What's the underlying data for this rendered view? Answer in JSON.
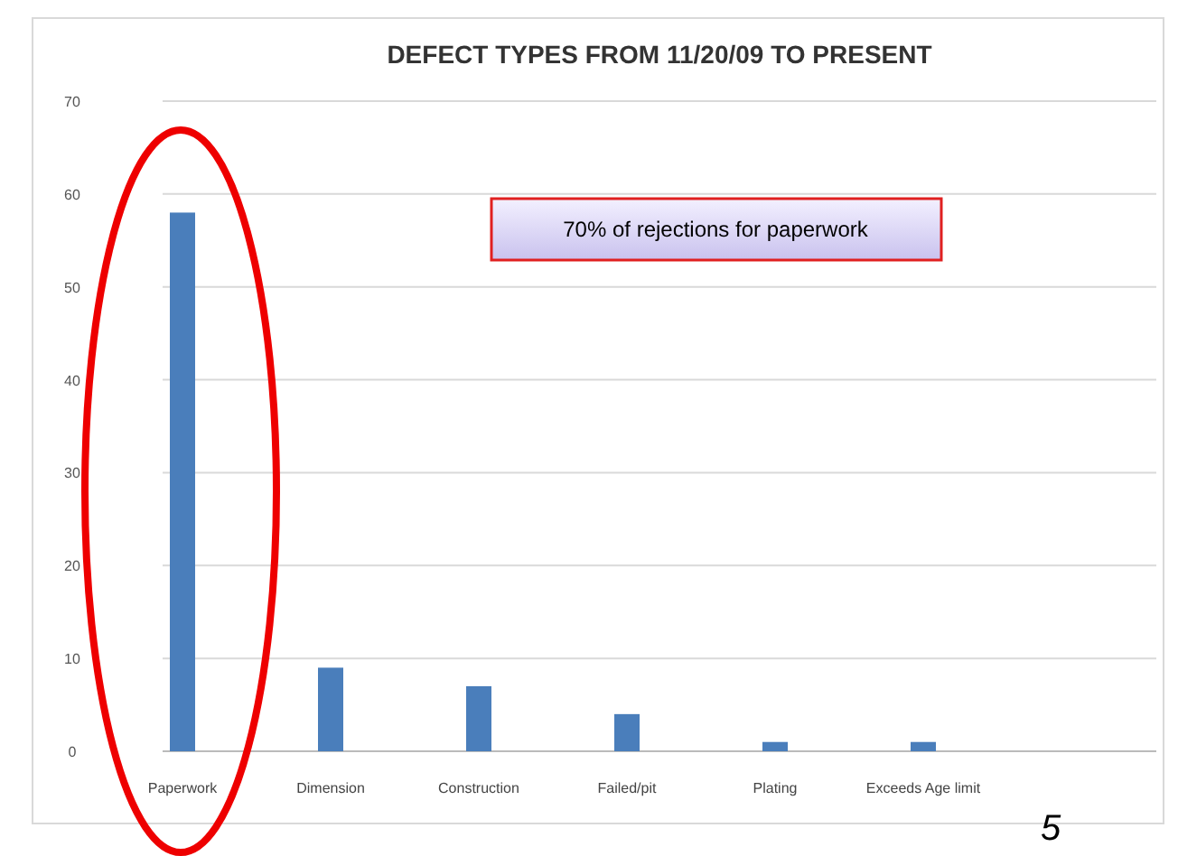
{
  "chart_data": {
    "type": "bar",
    "title": "DEFECT TYPES FROM 11/20/09 TO PRESENT",
    "categories": [
      "Paperwork",
      "Dimension",
      "Construction",
      "Failed/pit",
      "Plating",
      "Exceeds Age limit"
    ],
    "values": [
      58,
      9,
      7,
      4,
      1,
      1
    ],
    "color": "#4a7ebb",
    "ylim": [
      0,
      70
    ],
    "yticks": [
      0,
      10,
      20,
      30,
      40,
      50,
      60,
      70
    ],
    "grid": "y",
    "annotations": [
      "70% of rejections for paperwork",
      "5"
    ]
  }
}
